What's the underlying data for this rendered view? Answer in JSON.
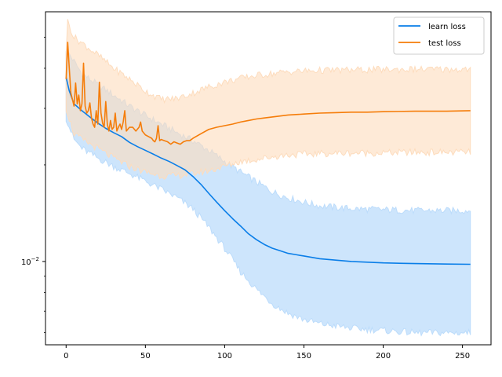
{
  "chart_data": {
    "type": "line",
    "title": "",
    "xlabel": "",
    "ylabel": "",
    "yscale": "log",
    "xlim": [
      -13,
      268
    ],
    "ylim": [
      0.0055,
      0.06
    ],
    "grid": false,
    "legend_position": "top-right",
    "x_ticks": [
      0,
      50,
      100,
      150,
      200,
      250
    ],
    "x_tick_labels": [
      "0",
      "50",
      "100",
      "150",
      "200",
      "250"
    ],
    "y_major_tick_value": 0.01,
    "y_major_tick_label": "10^-2",
    "y_minor_ticks": [
      0.006,
      0.007,
      0.008,
      0.009,
      0.02,
      0.03,
      0.04,
      0.05
    ],
    "series": [
      {
        "name": "learn loss",
        "color": "#0a7ee8",
        "band_color": "#bcdcfb",
        "points": [
          [
            0,
            0.0375
          ],
          [
            2,
            0.034
          ],
          [
            5,
            0.031
          ],
          [
            10,
            0.0295
          ],
          [
            15,
            0.0282
          ],
          [
            20,
            0.027
          ],
          [
            25,
            0.026
          ],
          [
            30,
            0.0252
          ],
          [
            35,
            0.0245
          ],
          [
            40,
            0.0235
          ],
          [
            45,
            0.0228
          ],
          [
            50,
            0.0222
          ],
          [
            55,
            0.0216
          ],
          [
            60,
            0.021
          ],
          [
            65,
            0.0205
          ],
          [
            70,
            0.0199
          ],
          [
            75,
            0.0193
          ],
          [
            80,
            0.0184
          ],
          [
            85,
            0.0174
          ],
          [
            90,
            0.0163
          ],
          [
            95,
            0.0153
          ],
          [
            100,
            0.0144
          ],
          [
            105,
            0.0136
          ],
          [
            110,
            0.0129
          ],
          [
            115,
            0.0122
          ],
          [
            120,
            0.0117
          ],
          [
            125,
            0.0113
          ],
          [
            130,
            0.011
          ],
          [
            135,
            0.0108
          ],
          [
            140,
            0.0106
          ],
          [
            145,
            0.0105
          ],
          [
            150,
            0.0104
          ],
          [
            160,
            0.0102
          ],
          [
            170,
            0.0101
          ],
          [
            180,
            0.01
          ],
          [
            190,
            0.00995
          ],
          [
            200,
            0.0099
          ],
          [
            220,
            0.00985
          ],
          [
            240,
            0.00982
          ],
          [
            255,
            0.0098
          ]
        ],
        "lower": [
          [
            0,
            0.028
          ],
          [
            5,
            0.024
          ],
          [
            10,
            0.0225
          ],
          [
            20,
            0.021
          ],
          [
            30,
            0.0198
          ],
          [
            40,
            0.0188
          ],
          [
            50,
            0.0178
          ],
          [
            60,
            0.0168
          ],
          [
            70,
            0.0158
          ],
          [
            80,
            0.0146
          ],
          [
            90,
            0.0128
          ],
          [
            100,
            0.011
          ],
          [
            110,
            0.0093
          ],
          [
            120,
            0.0082
          ],
          [
            130,
            0.0074
          ],
          [
            140,
            0.0069
          ],
          [
            150,
            0.0066
          ],
          [
            160,
            0.0064
          ],
          [
            170,
            0.0063
          ],
          [
            180,
            0.0062
          ],
          [
            200,
            0.0061
          ],
          [
            220,
            0.006
          ],
          [
            240,
            0.006
          ],
          [
            255,
            0.006
          ]
        ],
        "upper": [
          [
            0,
            0.046
          ],
          [
            5,
            0.042
          ],
          [
            10,
            0.0385
          ],
          [
            20,
            0.0355
          ],
          [
            30,
            0.033
          ],
          [
            40,
            0.0305
          ],
          [
            50,
            0.0285
          ],
          [
            60,
            0.0268
          ],
          [
            70,
            0.0252
          ],
          [
            80,
            0.0238
          ],
          [
            90,
            0.0222
          ],
          [
            100,
            0.0205
          ],
          [
            110,
            0.019
          ],
          [
            120,
            0.0177
          ],
          [
            130,
            0.0165
          ],
          [
            140,
            0.0158
          ],
          [
            150,
            0.0153
          ],
          [
            160,
            0.0149
          ],
          [
            180,
            0.0146
          ],
          [
            200,
            0.0145
          ],
          [
            220,
            0.0144
          ],
          [
            240,
            0.0144
          ],
          [
            255,
            0.0144
          ]
        ]
      },
      {
        "name": "test loss",
        "color": "#f57d0a",
        "band_color": "#fddcbd",
        "points": [
          [
            0,
            0.037
          ],
          [
            1,
            0.0482
          ],
          [
            2,
            0.04
          ],
          [
            3,
            0.0335
          ],
          [
            4,
            0.032
          ],
          [
            5,
            0.0305
          ],
          [
            6,
            0.036
          ],
          [
            7,
            0.031
          ],
          [
            8,
            0.033
          ],
          [
            9,
            0.0295
          ],
          [
            10,
            0.031
          ],
          [
            11,
            0.0415
          ],
          [
            12,
            0.0305
          ],
          [
            13,
            0.029
          ],
          [
            14,
            0.0295
          ],
          [
            15,
            0.0312
          ],
          [
            16,
            0.028
          ],
          [
            17,
            0.0268
          ],
          [
            18,
            0.0262
          ],
          [
            19,
            0.0295
          ],
          [
            20,
            0.0268
          ],
          [
            21,
            0.0362
          ],
          [
            22,
            0.029
          ],
          [
            23,
            0.027
          ],
          [
            24,
            0.0262
          ],
          [
            25,
            0.0315
          ],
          [
            26,
            0.0268
          ],
          [
            27,
            0.0255
          ],
          [
            28,
            0.0275
          ],
          [
            29,
            0.0258
          ],
          [
            30,
            0.0262
          ],
          [
            31,
            0.029
          ],
          [
            32,
            0.0255
          ],
          [
            33,
            0.0262
          ],
          [
            34,
            0.0268
          ],
          [
            35,
            0.0258
          ],
          [
            36,
            0.0272
          ],
          [
            37,
            0.0295
          ],
          [
            38,
            0.0255
          ],
          [
            40,
            0.0262
          ],
          [
            42,
            0.0262
          ],
          [
            44,
            0.0255
          ],
          [
            46,
            0.0262
          ],
          [
            47,
            0.0272
          ],
          [
            48,
            0.0255
          ],
          [
            50,
            0.0248
          ],
          [
            52,
            0.0245
          ],
          [
            54,
            0.0242
          ],
          [
            55,
            0.0238
          ],
          [
            56,
            0.0236
          ],
          [
            57,
            0.0242
          ],
          [
            58,
            0.0265
          ],
          [
            59,
            0.0238
          ],
          [
            60,
            0.024
          ],
          [
            62,
            0.0238
          ],
          [
            64,
            0.0236
          ],
          [
            66,
            0.0232
          ],
          [
            68,
            0.0236
          ],
          [
            70,
            0.0234
          ],
          [
            72,
            0.0232
          ],
          [
            74,
            0.0236
          ],
          [
            76,
            0.0238
          ],
          [
            78,
            0.0238
          ],
          [
            80,
            0.0242
          ],
          [
            85,
            0.025
          ],
          [
            90,
            0.0258
          ],
          [
            95,
            0.0262
          ],
          [
            100,
            0.0265
          ],
          [
            105,
            0.0268
          ],
          [
            110,
            0.0272
          ],
          [
            115,
            0.0275
          ],
          [
            120,
            0.0278
          ],
          [
            125,
            0.028
          ],
          [
            130,
            0.0282
          ],
          [
            135,
            0.0284
          ],
          [
            140,
            0.0286
          ],
          [
            145,
            0.0287
          ],
          [
            150,
            0.0288
          ],
          [
            160,
            0.029
          ],
          [
            170,
            0.0291
          ],
          [
            180,
            0.0292
          ],
          [
            190,
            0.0292
          ],
          [
            200,
            0.0293
          ],
          [
            220,
            0.0294
          ],
          [
            240,
            0.0294
          ],
          [
            255,
            0.0295
          ]
        ],
        "lower": [
          [
            0,
            0.03
          ],
          [
            5,
            0.025
          ],
          [
            10,
            0.024
          ],
          [
            20,
            0.0225
          ],
          [
            30,
            0.021
          ],
          [
            40,
            0.0198
          ],
          [
            50,
            0.019
          ],
          [
            60,
            0.0185
          ],
          [
            70,
            0.0185
          ],
          [
            80,
            0.0188
          ],
          [
            90,
            0.0192
          ],
          [
            100,
            0.0198
          ],
          [
            110,
            0.0205
          ],
          [
            120,
            0.0208
          ],
          [
            130,
            0.0212
          ],
          [
            140,
            0.0215
          ],
          [
            150,
            0.0216
          ],
          [
            160,
            0.0217
          ],
          [
            180,
            0.0218
          ],
          [
            200,
            0.0218
          ],
          [
            220,
            0.0219
          ],
          [
            240,
            0.0219
          ],
          [
            255,
            0.0219
          ]
        ],
        "upper": [
          [
            0,
            0.045
          ],
          [
            1,
            0.056
          ],
          [
            5,
            0.05
          ],
          [
            10,
            0.048
          ],
          [
            20,
            0.044
          ],
          [
            30,
            0.04
          ],
          [
            40,
            0.037
          ],
          [
            50,
            0.034
          ],
          [
            60,
            0.032
          ],
          [
            70,
            0.0322
          ],
          [
            80,
            0.0335
          ],
          [
            90,
            0.035
          ],
          [
            100,
            0.0362
          ],
          [
            110,
            0.0372
          ],
          [
            120,
            0.038
          ],
          [
            130,
            0.0385
          ],
          [
            140,
            0.039
          ],
          [
            150,
            0.0392
          ],
          [
            160,
            0.0394
          ],
          [
            180,
            0.0395
          ],
          [
            200,
            0.0396
          ],
          [
            220,
            0.0397
          ],
          [
            240,
            0.0397
          ],
          [
            255,
            0.0397
          ]
        ]
      }
    ]
  }
}
